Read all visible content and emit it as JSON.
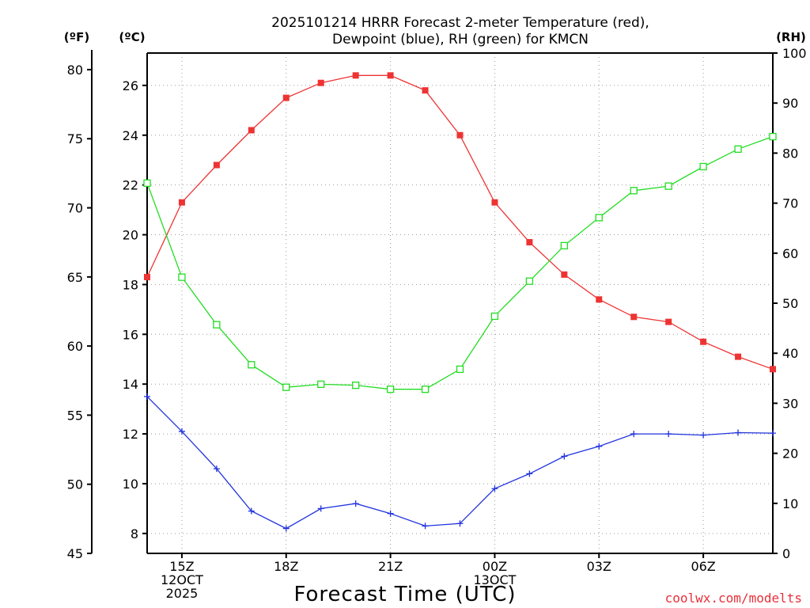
{
  "chart_data": {
    "type": "line",
    "title": [
      "2025101214 HRRR Forecast 2-meter Temperature (red),",
      "Dewpoint (blue), RH (green) for KMCN"
    ],
    "xlabel": "Forecast Time (UTC)",
    "credit": "coolwx.com/modelts",
    "units": {
      "fahrenheit": "(ºF)",
      "celsius": "(ºC)",
      "rh": "(RH)"
    },
    "x": [
      14,
      15,
      16,
      17,
      18,
      19,
      20,
      21,
      22,
      23,
      24,
      25,
      26,
      27,
      28,
      29,
      30,
      31,
      32
    ],
    "xlim": [
      14,
      32
    ],
    "x_ticks": [
      {
        "x": 15,
        "lines": [
          "15Z",
          "12OCT",
          "2025"
        ]
      },
      {
        "x": 18,
        "lines": [
          "18Z"
        ]
      },
      {
        "x": 21,
        "lines": [
          "21Z"
        ]
      },
      {
        "x": 24,
        "lines": [
          "00Z",
          "13OCT"
        ]
      },
      {
        "x": 27,
        "lines": [
          "03Z"
        ]
      },
      {
        "x": 30,
        "lines": [
          "06Z"
        ]
      }
    ],
    "celsius_axis": {
      "lim": [
        7.2,
        27.3
      ],
      "ticks": [
        "8",
        "10",
        "12",
        "14",
        "16",
        "18",
        "20",
        "22",
        "24",
        "26"
      ]
    },
    "fahrenheit_axis": {
      "lim": [
        45,
        81.2
      ],
      "ticks": [
        "45",
        "50",
        "55",
        "60",
        "65",
        "70",
        "75",
        "80"
      ]
    },
    "rh_axis": {
      "lim": [
        0,
        100
      ],
      "ticks": [
        "0",
        "10",
        "20",
        "30",
        "40",
        "50",
        "60",
        "70",
        "80",
        "90",
        "100"
      ]
    },
    "series": [
      {
        "name": "Temperature",
        "axis": "celsius",
        "color": "#ee3333",
        "marker": "filled-square",
        "values": [
          18.3,
          21.3,
          22.8,
          24.2,
          25.5,
          26.1,
          26.4,
          26.4,
          25.8,
          24.0,
          21.3,
          19.7,
          18.4,
          17.4,
          16.7,
          16.5,
          15.7,
          15.1,
          14.6
        ]
      },
      {
        "name": "Dewpoint",
        "axis": "celsius",
        "color": "#2233dd",
        "marker": "plus",
        "values": [
          13.5,
          12.1,
          10.6,
          8.9,
          8.2,
          9.0,
          9.2,
          8.8,
          8.3,
          8.4,
          9.8,
          10.4,
          11.1,
          11.5,
          12.0,
          12.0,
          11.95,
          12.05,
          12.03
        ]
      },
      {
        "name": "RH",
        "axis": "rh",
        "color": "#22dd22",
        "marker": "open-square",
        "values": [
          74,
          55.2,
          45.7,
          37.7,
          33.2,
          33.8,
          33.6,
          32.8,
          32.8,
          36.8,
          47.4,
          54.4,
          61.5,
          67.1,
          72.5,
          73.4,
          77.3,
          80.8,
          83.3
        ]
      }
    ]
  }
}
